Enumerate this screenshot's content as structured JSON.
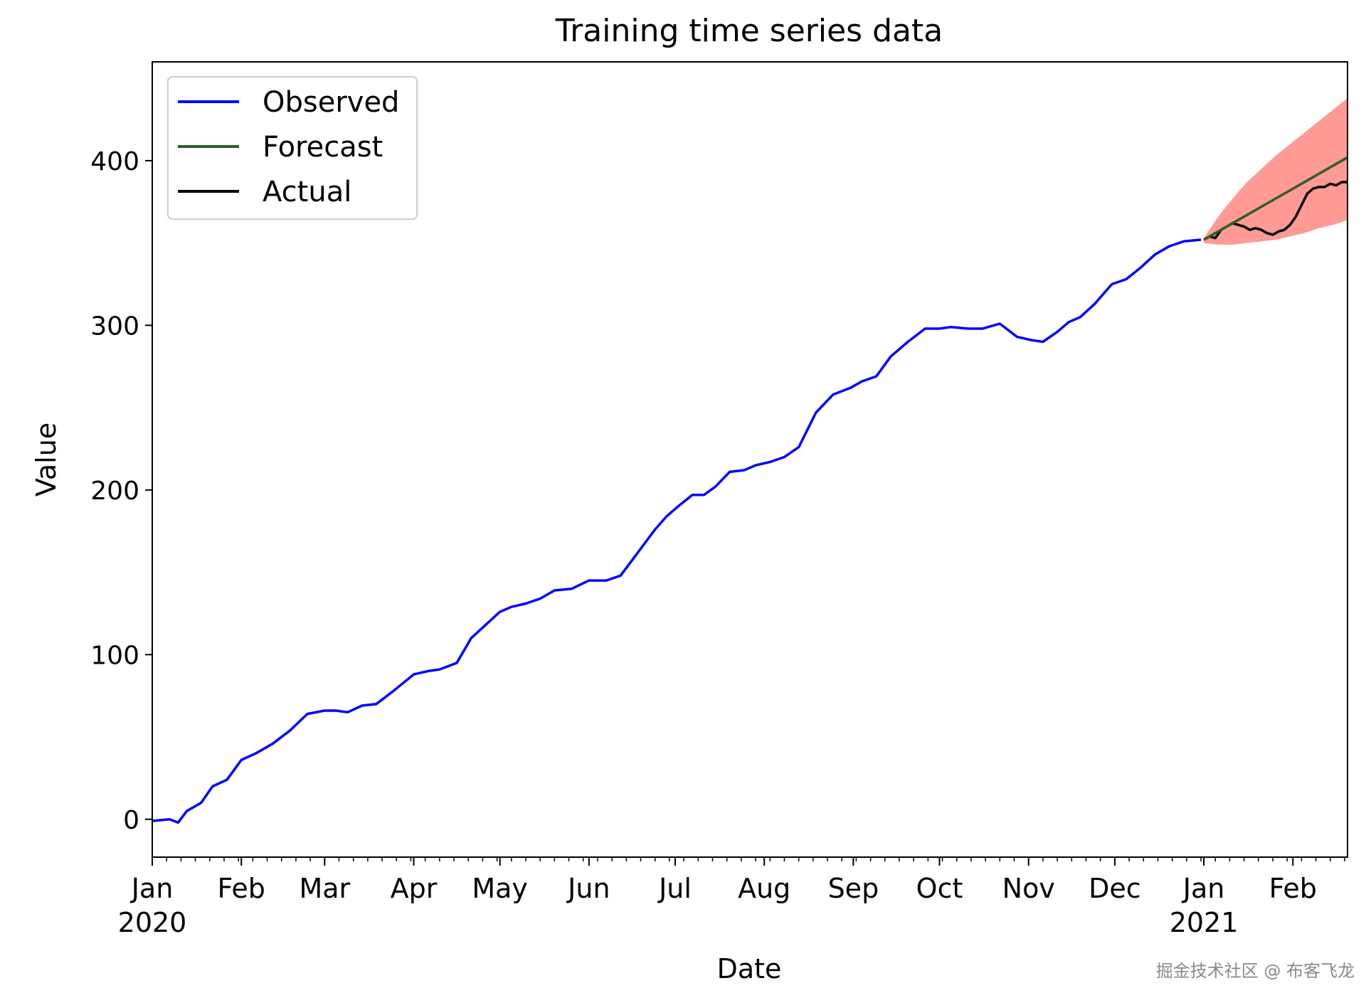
{
  "chart_data": {
    "type": "line",
    "title": "Training time series data",
    "xlabel": "Date",
    "ylabel": "Value",
    "xlim": [
      "2020-01-01",
      "2021-02-20"
    ],
    "ylim": [
      -23,
      460
    ],
    "yticks": [
      0,
      100,
      200,
      300,
      400
    ],
    "xticks": [
      {
        "date": "2020-01-01",
        "label": "Jan",
        "sublabel": "2020"
      },
      {
        "date": "2020-02-01",
        "label": "Feb"
      },
      {
        "date": "2020-03-01",
        "label": "Mar"
      },
      {
        "date": "2020-04-01",
        "label": "Apr"
      },
      {
        "date": "2020-05-01",
        "label": "May"
      },
      {
        "date": "2020-06-01",
        "label": "Jun"
      },
      {
        "date": "2020-07-01",
        "label": "Jul"
      },
      {
        "date": "2020-08-01",
        "label": "Aug"
      },
      {
        "date": "2020-09-01",
        "label": "Sep"
      },
      {
        "date": "2020-10-01",
        "label": "Oct"
      },
      {
        "date": "2020-11-01",
        "label": "Nov"
      },
      {
        "date": "2020-12-01",
        "label": "Dec"
      },
      {
        "date": "2021-01-01",
        "label": "Jan",
        "sublabel": "2021"
      },
      {
        "date": "2021-02-01",
        "label": "Feb"
      }
    ],
    "grid": false,
    "legend": "upper-left",
    "series": [
      {
        "name": "Observed",
        "color": "#0000ff",
        "x": [
          "2020-01-01",
          "2020-01-07",
          "2020-01-10",
          "2020-01-13",
          "2020-01-18",
          "2020-01-22",
          "2020-01-27",
          "2020-02-01",
          "2020-02-06",
          "2020-02-12",
          "2020-02-18",
          "2020-02-24",
          "2020-03-01",
          "2020-03-05",
          "2020-03-09",
          "2020-03-14",
          "2020-03-19",
          "2020-03-25",
          "2020-04-01",
          "2020-04-06",
          "2020-04-10",
          "2020-04-16",
          "2020-04-21",
          "2020-04-26",
          "2020-05-01",
          "2020-05-05",
          "2020-05-10",
          "2020-05-15",
          "2020-05-20",
          "2020-05-26",
          "2020-06-01",
          "2020-06-07",
          "2020-06-12",
          "2020-06-18",
          "2020-06-24",
          "2020-06-28",
          "2020-07-02",
          "2020-07-07",
          "2020-07-11",
          "2020-07-15",
          "2020-07-20",
          "2020-07-25",
          "2020-07-29",
          "2020-08-03",
          "2020-08-08",
          "2020-08-13",
          "2020-08-19",
          "2020-08-25",
          "2020-08-31",
          "2020-09-04",
          "2020-09-09",
          "2020-09-14",
          "2020-09-20",
          "2020-09-26",
          "2020-10-01",
          "2020-10-05",
          "2020-10-11",
          "2020-10-16",
          "2020-10-22",
          "2020-10-28",
          "2020-11-02",
          "2020-11-06",
          "2020-11-11",
          "2020-11-15",
          "2020-11-19",
          "2020-11-24",
          "2020-11-30",
          "2020-12-05",
          "2020-12-10",
          "2020-12-15",
          "2020-12-20",
          "2020-12-25",
          "2020-12-31"
        ],
        "values": [
          -1,
          0,
          -2,
          5,
          10,
          20,
          24,
          36,
          40,
          46,
          54,
          64,
          66,
          66,
          65,
          69,
          70,
          78,
          88,
          90,
          91,
          95,
          110,
          118,
          126,
          129,
          131,
          134,
          139,
          140,
          145,
          145,
          148,
          162,
          176,
          184,
          190,
          197,
          197,
          202,
          211,
          212,
          215,
          217,
          220,
          226,
          247,
          258,
          262,
          266,
          269,
          281,
          290,
          298,
          298,
          299,
          298,
          298,
          301,
          293,
          291,
          290,
          296,
          302,
          305,
          313,
          325,
          328,
          335,
          343,
          348,
          351,
          352
        ]
      },
      {
        "name": "Forecast",
        "color": "#2f5d2a",
        "x": [
          "2021-01-01",
          "2021-02-20"
        ],
        "values": [
          352,
          402
        ]
      },
      {
        "name": "Actual",
        "color": "#000000",
        "x": [
          "2021-01-01",
          "2021-01-03",
          "2021-01-05",
          "2021-01-07",
          "2021-01-09",
          "2021-01-11",
          "2021-01-13",
          "2021-01-15",
          "2021-01-17",
          "2021-01-19",
          "2021-01-21",
          "2021-01-23",
          "2021-01-25",
          "2021-01-27",
          "2021-01-29",
          "2021-01-31",
          "2021-02-02",
          "2021-02-04",
          "2021-02-06",
          "2021-02-08",
          "2021-02-10",
          "2021-02-12",
          "2021-02-14",
          "2021-02-16",
          "2021-02-18",
          "2021-02-20"
        ],
        "values": [
          352,
          354,
          353,
          358,
          360,
          362,
          361,
          360,
          358,
          359,
          358,
          356,
          355,
          357,
          358,
          361,
          366,
          373,
          380,
          383,
          384,
          384,
          386,
          385,
          387,
          387
        ]
      }
    ],
    "confidence_band": {
      "color": "#ff9a94",
      "x": [
        "2021-01-01",
        "2021-01-06",
        "2021-01-11",
        "2021-01-16",
        "2021-01-21",
        "2021-01-26",
        "2021-01-31",
        "2021-02-05",
        "2021-02-10",
        "2021-02-15",
        "2021-02-20"
      ],
      "lower": [
        350,
        349,
        349,
        350,
        351,
        352,
        354,
        356,
        359,
        361,
        364
      ],
      "upper": [
        353,
        366,
        377,
        387,
        395,
        403,
        410,
        417,
        424,
        431,
        438
      ]
    }
  },
  "watermark": "掘金技术社区 @ 布客飞龙"
}
